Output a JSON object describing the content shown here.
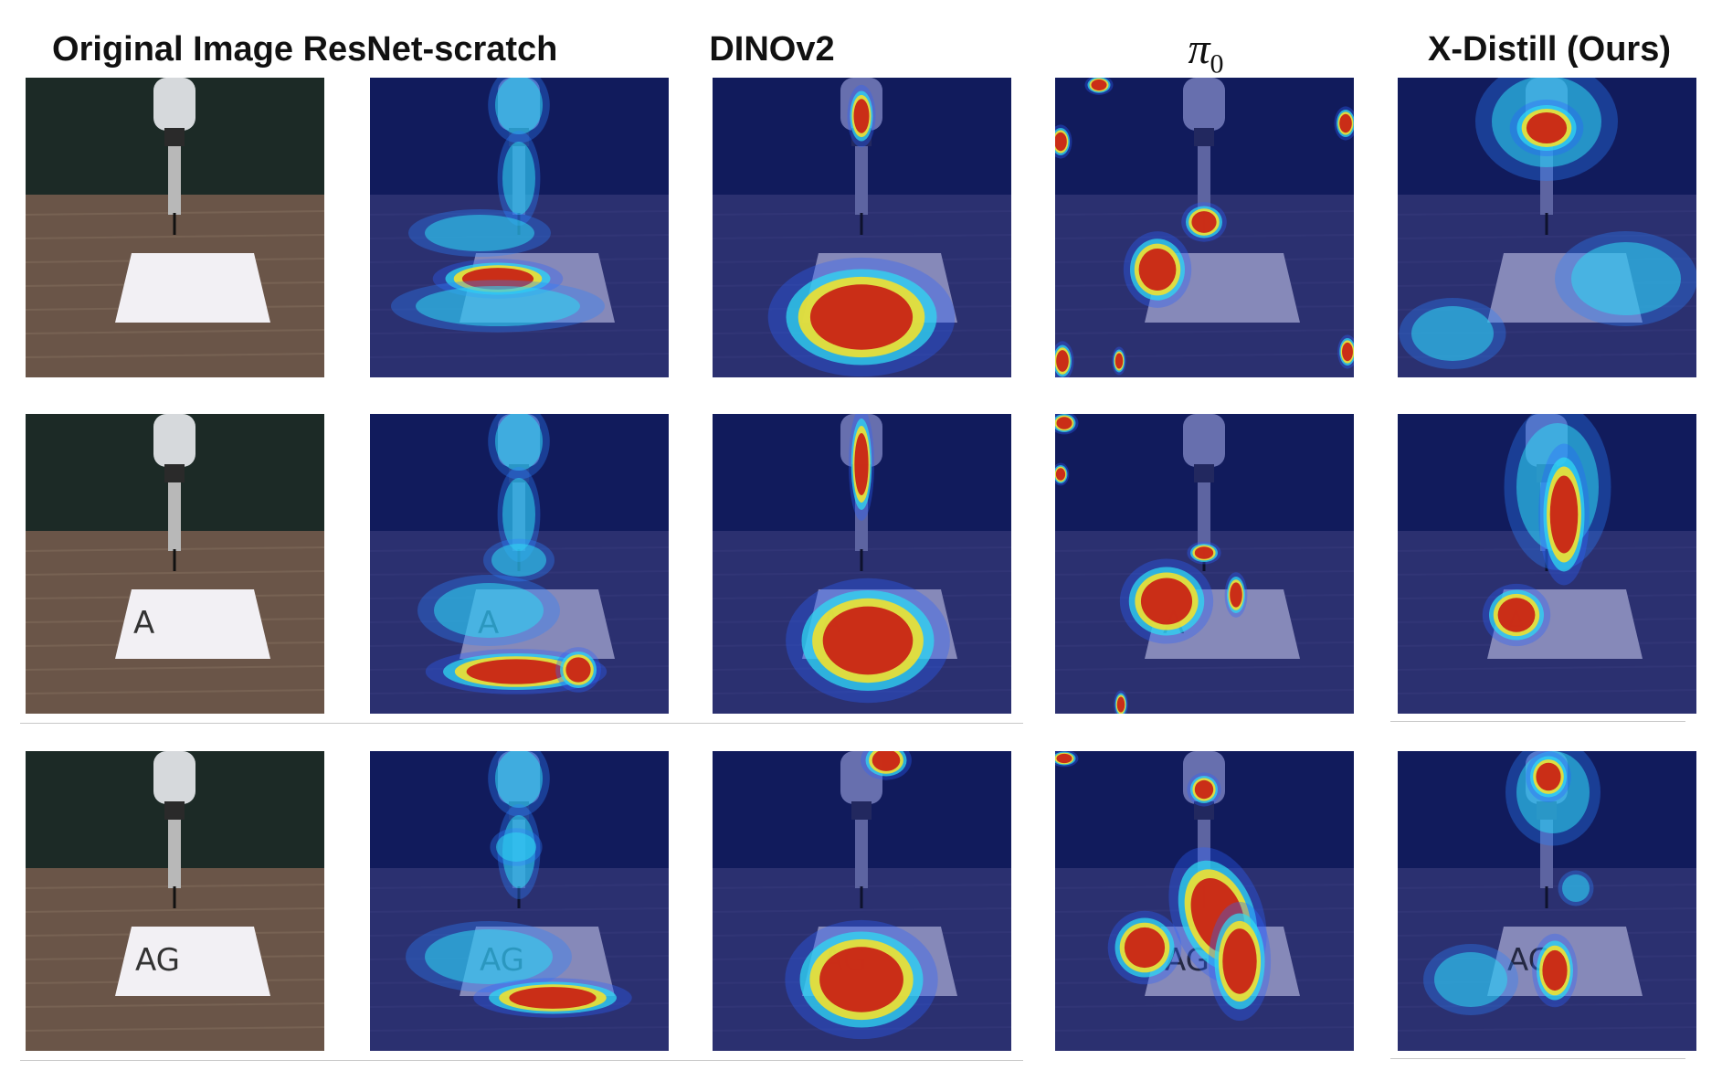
{
  "columns": [
    {
      "key": "original",
      "label": "Original Image"
    },
    {
      "key": "resnet",
      "label": "ResNet-scratch"
    },
    {
      "key": "dino",
      "label": "DINOv2"
    },
    {
      "key": "pi0",
      "label": "π",
      "subscript": "0"
    },
    {
      "key": "xdistill",
      "label": "X-Distill (Ours)"
    }
  ],
  "rows": [
    {
      "paper_text": ""
    },
    {
      "paper_text": "A"
    },
    {
      "paper_text": "AG"
    }
  ],
  "colors": {
    "overlay_blue": "#0a1460",
    "heat_red": "#c81e14",
    "heat_yellow": "#f0e030",
    "heat_cyan": "#30d8f0",
    "table_wood": "#6a5548",
    "backdrop": "#1c2a26",
    "paper": "#f2f0f4"
  }
}
